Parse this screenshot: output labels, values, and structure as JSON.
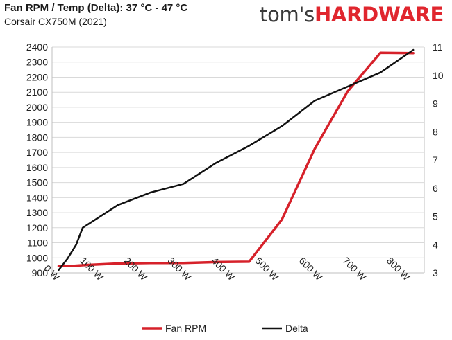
{
  "header": {
    "title": "Fan RPM / Temp (Delta): 37 °C - 47 °C",
    "subtitle": "Corsair CX750M (2021)",
    "brand_part1": "tom's",
    "brand_part2": "HARDWARE"
  },
  "colors": {
    "fan": "#d6212a",
    "delta": "#111111",
    "grid": "#d9d9d9",
    "brand_accent": "#e0262e"
  },
  "chart_data": {
    "type": "line",
    "title": "Fan RPM / Temp (Delta): 37 °C - 47 °C",
    "subtitle": "Corsair CX750M (2021)",
    "x_ticks": [
      "0 W",
      "100 W",
      "200 W",
      "300 W",
      "400 W",
      "500 W",
      "600 W",
      "700 W",
      "800 W"
    ],
    "x_tick_values": [
      0,
      100,
      200,
      300,
      400,
      500,
      600,
      700,
      800
    ],
    "xlim": [
      0,
      850
    ],
    "y_left_ticks": [
      "900",
      "1000",
      "1100",
      "1200",
      "1300",
      "1400",
      "1500",
      "1600",
      "1700",
      "1800",
      "1900",
      "2000",
      "2100",
      "2200",
      "2300",
      "2400"
    ],
    "y_left_tick_values": [
      900,
      1000,
      1100,
      1200,
      1300,
      1400,
      1500,
      1600,
      1700,
      1800,
      1900,
      2000,
      2100,
      2200,
      2300,
      2400
    ],
    "ylim_left": [
      900,
      2400
    ],
    "y_right_ticks": [
      "3",
      "4",
      "5",
      "6",
      "7",
      "8",
      "9",
      "10",
      "11"
    ],
    "y_right_tick_values": [
      3,
      4,
      5,
      6,
      7,
      8,
      9,
      10,
      11
    ],
    "ylim_right": [
      3,
      11
    ],
    "grid": "horizontal",
    "legend_position": "bottom",
    "series": [
      {
        "name": "Fan RPM",
        "axis": "left",
        "color": "#d6212a",
        "x": [
          15,
          40,
          75,
          150,
          225,
          300,
          375,
          450,
          525,
          600,
          675,
          750,
          825
        ],
        "y": [
          945,
          945,
          952,
          962,
          966,
          966,
          972,
          974,
          1255,
          1725,
          2105,
          2362,
          2360
        ]
      },
      {
        "name": "Delta",
        "axis": "right",
        "color": "#111111",
        "x": [
          15,
          35,
          55,
          70,
          150,
          225,
          300,
          375,
          450,
          525,
          600,
          675,
          750,
          825
        ],
        "y": [
          3.1,
          3.5,
          4.0,
          4.6,
          5.4,
          5.85,
          6.15,
          6.9,
          7.5,
          8.2,
          9.1,
          9.6,
          10.1,
          10.9
        ]
      }
    ]
  }
}
